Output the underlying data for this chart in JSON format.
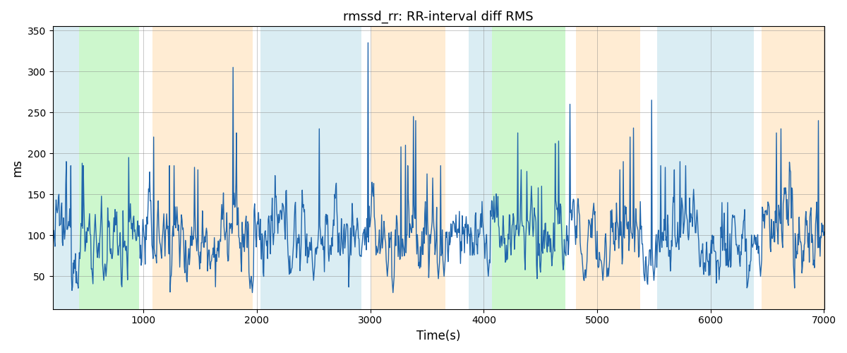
{
  "title": "rmssd_rr: RR-interval diff RMS",
  "xlabel": "Time(s)",
  "ylabel": "ms",
  "xlim": [
    200,
    7000
  ],
  "ylim": [
    10,
    355
  ],
  "yticks": [
    50,
    100,
    150,
    200,
    250,
    300,
    350
  ],
  "xticks": [
    1000,
    2000,
    3000,
    4000,
    5000,
    6000,
    7000
  ],
  "line_color": "#2166ac",
  "line_width": 1.0,
  "bg_bands": [
    {
      "xmin": 200,
      "xmax": 430,
      "color": "#add8e6",
      "alpha": 0.45
    },
    {
      "xmin": 430,
      "xmax": 960,
      "color": "#90ee90",
      "alpha": 0.45
    },
    {
      "xmin": 1080,
      "xmax": 1960,
      "color": "#ffd59e",
      "alpha": 0.45
    },
    {
      "xmin": 2030,
      "xmax": 2920,
      "color": "#add8e6",
      "alpha": 0.45
    },
    {
      "xmin": 3010,
      "xmax": 3660,
      "color": "#ffd59e",
      "alpha": 0.45
    },
    {
      "xmin": 3870,
      "xmax": 4070,
      "color": "#add8e6",
      "alpha": 0.45
    },
    {
      "xmin": 4070,
      "xmax": 4720,
      "color": "#90ee90",
      "alpha": 0.45
    },
    {
      "xmin": 4810,
      "xmax": 5380,
      "color": "#ffd59e",
      "alpha": 0.45
    },
    {
      "xmin": 5530,
      "xmax": 6380,
      "color": "#add8e6",
      "alpha": 0.45
    },
    {
      "xmin": 6450,
      "xmax": 7100,
      "color": "#ffd59e",
      "alpha": 0.45
    }
  ],
  "figsize": [
    12.0,
    5.0
  ],
  "dpi": 100
}
